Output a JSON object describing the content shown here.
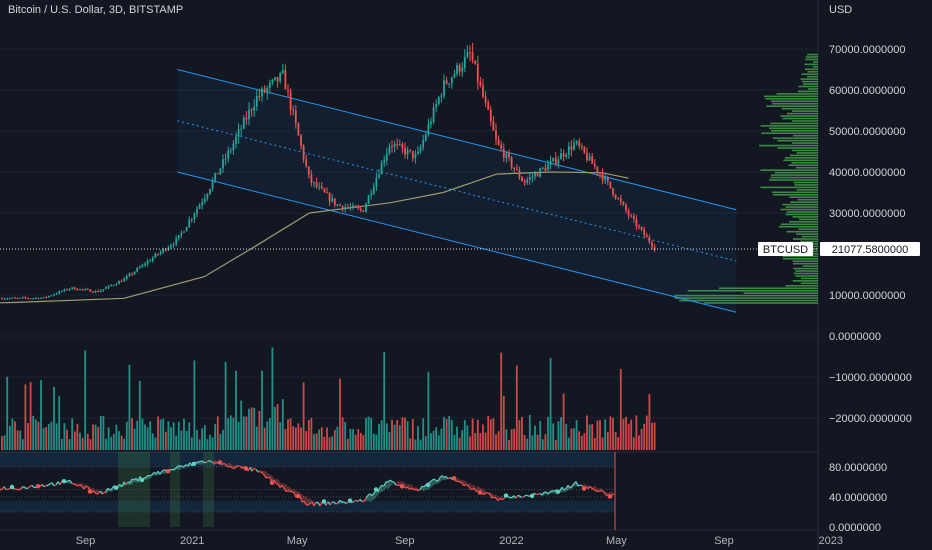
{
  "header": {
    "title": "Bitcoin / U.S. Dollar, 3D, BITSTAMP",
    "unit": "USD"
  },
  "price_tag": {
    "symbol": "BTCUSD",
    "value": "21077.5800000"
  },
  "colors": {
    "background": "#131722",
    "up": "#26a69a",
    "down": "#ef5350",
    "channel": "#2196f3",
    "moving_average": "#9e9a72",
    "volume_profile": "#4caf50",
    "oscillator_bull": "#5fd1c1",
    "oscillator_bear": "#ef5350"
  },
  "chart_data": {
    "type": "line",
    "panes": [
      "price",
      "volume",
      "oscillator"
    ],
    "price_axis": {
      "ticks": [
        "70000.0000000",
        "60000.0000000",
        "50000.0000000",
        "40000.0000000",
        "30000.0000000",
        "10000.0000000",
        "0.0000000",
        "−10000.0000000",
        "−20000.0000000"
      ],
      "tick_values": [
        70000,
        60000,
        50000,
        40000,
        30000,
        10000,
        0,
        -10000,
        -20000
      ],
      "range": [
        -27000,
        73000
      ]
    },
    "oscillator_axis": {
      "ticks": [
        "80.0000000",
        "40.0000000",
        "0.0000000"
      ],
      "tick_values": [
        80,
        40,
        0
      ],
      "range": [
        0,
        100
      ],
      "levels": [
        80,
        50,
        40,
        20
      ]
    },
    "x_axis": {
      "ticks": [
        "Sep",
        "2021",
        "May",
        "Sep",
        "2022",
        "May",
        "Sep",
        "2023"
      ]
    },
    "price_series": [
      {
        "d": "2020-06",
        "close": 9200
      },
      {
        "d": "2020-07",
        "close": 9300
      },
      {
        "d": "2020-08",
        "close": 11700
      },
      {
        "d": "2020-09",
        "close": 10800
      },
      {
        "d": "2020-10",
        "close": 13800
      },
      {
        "d": "2020-11",
        "close": 18800
      },
      {
        "d": "2020-12",
        "close": 23500
      },
      {
        "d": "2021-01",
        "close": 34000
      },
      {
        "d": "2021-02",
        "close": 46000
      },
      {
        "d": "2021-03",
        "close": 58000
      },
      {
        "d": "2021-04",
        "close": 63500
      },
      {
        "d": "2021-05",
        "close": 38000
      },
      {
        "d": "2021-06",
        "close": 32000
      },
      {
        "d": "2021-07",
        "close": 30500
      },
      {
        "d": "2021-08",
        "close": 47000
      },
      {
        "d": "2021-09",
        "close": 43500
      },
      {
        "d": "2021-10",
        "close": 61000
      },
      {
        "d": "2021-11",
        "close": 68800
      },
      {
        "d": "2021-12",
        "close": 47000
      },
      {
        "d": "2022-01",
        "close": 37500
      },
      {
        "d": "2022-02",
        "close": 42000
      },
      {
        "d": "2022-03",
        "close": 47000
      },
      {
        "d": "2022-04",
        "close": 39000
      },
      {
        "d": "2022-05",
        "close": 29500
      },
      {
        "d": "2022-06",
        "close": 21077.58
      }
    ],
    "moving_average": [
      {
        "d": "2020-06",
        "v": 8200
      },
      {
        "d": "2020-10",
        "v": 9200
      },
      {
        "d": "2021-01",
        "v": 14500
      },
      {
        "d": "2021-03",
        "v": 22000
      },
      {
        "d": "2021-05",
        "v": 30000
      },
      {
        "d": "2021-08",
        "v": 32500
      },
      {
        "d": "2021-10",
        "v": 35000
      },
      {
        "d": "2021-12",
        "v": 39500
      },
      {
        "d": "2022-02",
        "v": 40000
      },
      {
        "d": "2022-04",
        "v": 39800
      },
      {
        "d": "2022-05",
        "v": 38500
      }
    ],
    "channel": {
      "upper": [
        {
          "d": "2020-12",
          "v": 65000
        },
        {
          "d": "2022-09",
          "v": 30800
        }
      ],
      "middle": [
        {
          "d": "2020-12",
          "v": 52500
        },
        {
          "d": "2022-09",
          "v": 18300
        }
      ],
      "lower": [
        {
          "d": "2020-12",
          "v": 40000
        },
        {
          "d": "2022-09",
          "v": 5800
        }
      ]
    },
    "oscillator_series": [
      {
        "d": "2020-06",
        "v": 52
      },
      {
        "d": "2020-08",
        "v": 60
      },
      {
        "d": "2020-09",
        "v": 45
      },
      {
        "d": "2020-11",
        "v": 70
      },
      {
        "d": "2021-01",
        "v": 88
      },
      {
        "d": "2021-03",
        "v": 75
      },
      {
        "d": "2021-05",
        "v": 30
      },
      {
        "d": "2021-07",
        "v": 35
      },
      {
        "d": "2021-08",
        "v": 62
      },
      {
        "d": "2021-09",
        "v": 48
      },
      {
        "d": "2021-10",
        "v": 68
      },
      {
        "d": "2021-12",
        "v": 38
      },
      {
        "d": "2022-02",
        "v": 45
      },
      {
        "d": "2022-03",
        "v": 58
      },
      {
        "d": "2022-04",
        "v": 46
      },
      {
        "d": "2022-06",
        "v": 25
      }
    ]
  }
}
